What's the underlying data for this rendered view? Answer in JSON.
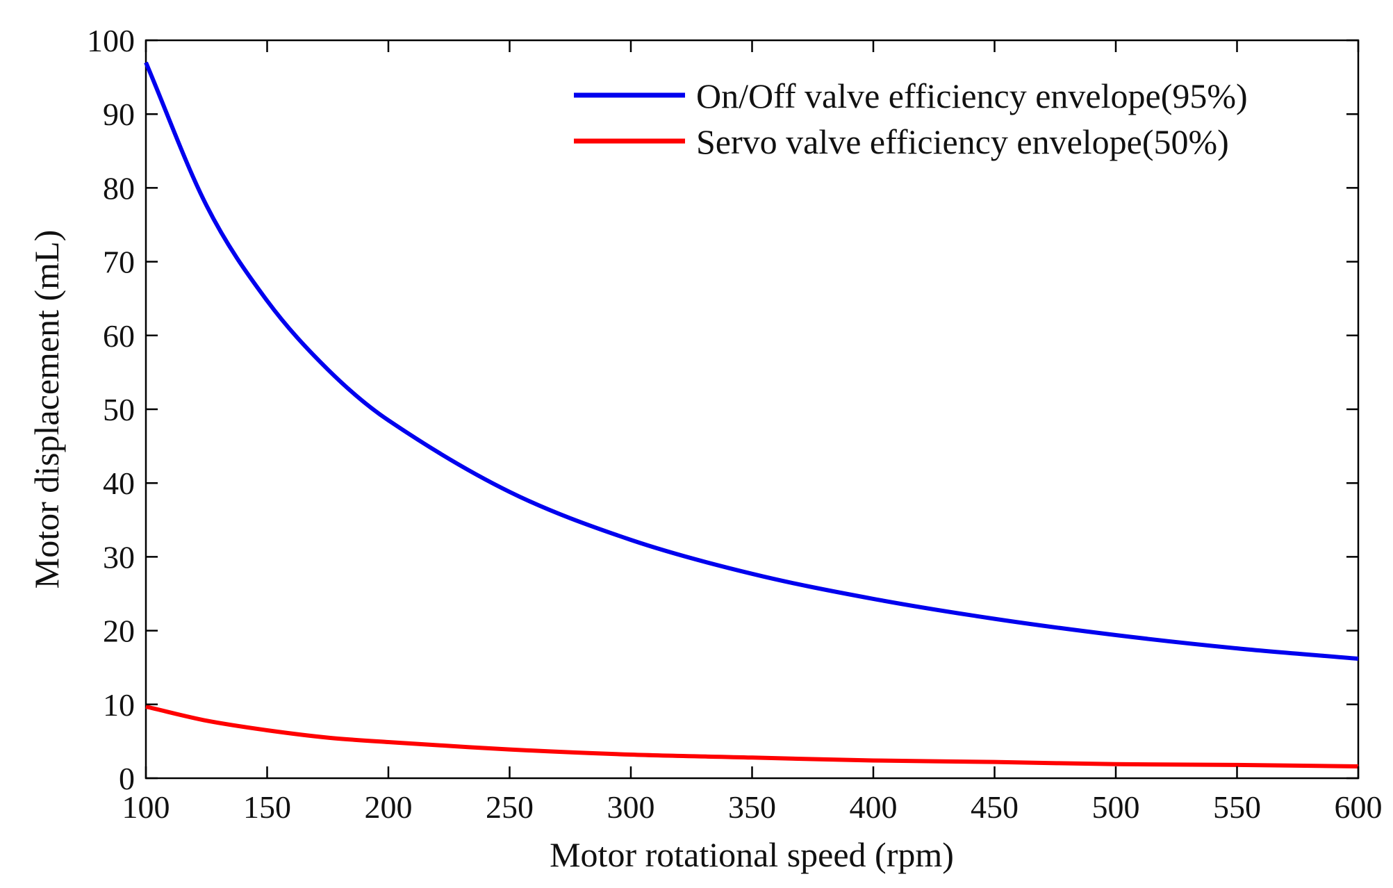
{
  "chart_data": {
    "type": "line",
    "title": "",
    "xlabel": "Motor rotational speed (rpm)",
    "ylabel": "Motor displacement (mL)",
    "xlim": [
      100,
      600
    ],
    "ylim": [
      0,
      100
    ],
    "xticks": [
      100,
      150,
      200,
      250,
      300,
      350,
      400,
      450,
      500,
      550,
      600
    ],
    "yticks": [
      0,
      10,
      20,
      30,
      40,
      50,
      60,
      70,
      80,
      90,
      100
    ],
    "xtick_labels": [
      "100",
      "150",
      "200",
      "250",
      "300",
      "350",
      "400",
      "450",
      "500",
      "550",
      "600"
    ],
    "ytick_labels": [
      "0",
      "10",
      "20",
      "30",
      "40",
      "50",
      "60",
      "70",
      "80",
      "90",
      "100"
    ],
    "grid": false,
    "legend_position": "top-right",
    "series": [
      {
        "name": "On/Off valve efficiency envelope(95%)",
        "color": "#0000ee",
        "x": [
          100,
          125,
          150,
          175,
          200,
          250,
          300,
          350,
          400,
          450,
          500,
          550,
          600
        ],
        "y": [
          97,
          77.6,
          64.7,
          55.4,
          48.5,
          38.8,
          32.3,
          27.7,
          24.3,
          21.6,
          19.4,
          17.6,
          16.2
        ]
      },
      {
        "name": "Servo valve efficiency envelope(50%)",
        "color": "#ff0000",
        "x": [
          100,
          125,
          150,
          175,
          200,
          250,
          300,
          350,
          400,
          450,
          500,
          550,
          600
        ],
        "y": [
          9.7,
          7.8,
          6.5,
          5.5,
          4.9,
          3.9,
          3.2,
          2.8,
          2.4,
          2.2,
          1.9,
          1.8,
          1.6
        ]
      }
    ]
  }
}
